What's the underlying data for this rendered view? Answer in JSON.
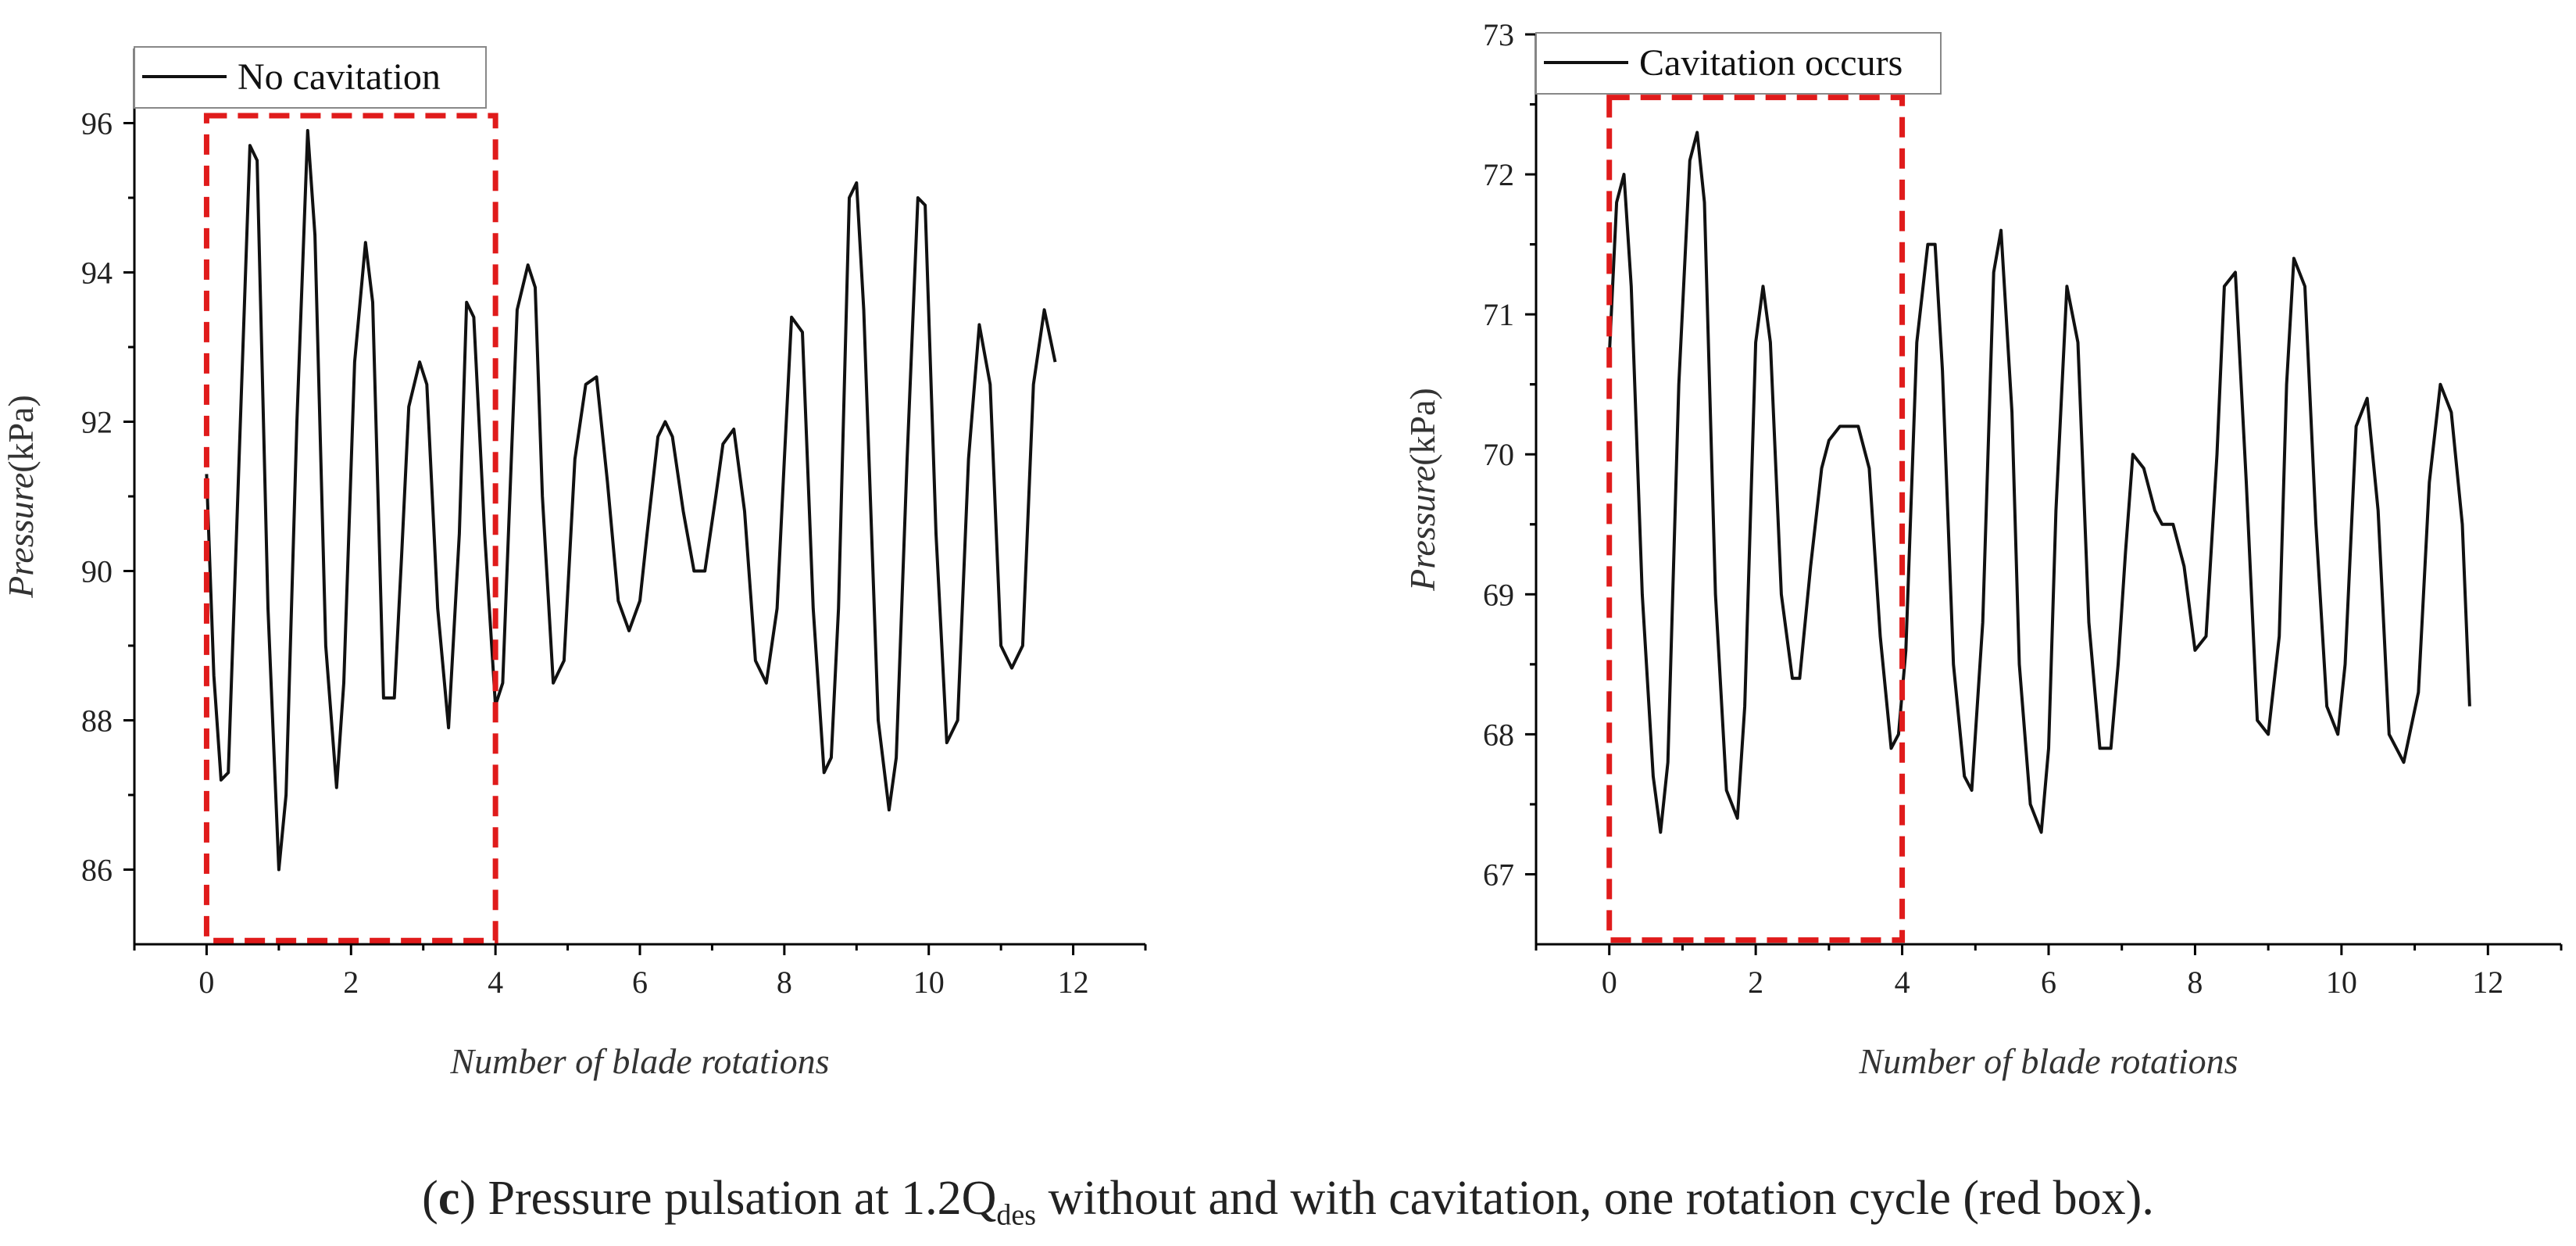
{
  "chart_data": [
    {
      "type": "line",
      "title": "",
      "xlabel": "Number of blade rotations",
      "ylabel_italic": "Pressure",
      "ylabel_unit": "(kPa)",
      "xlim": [
        -1,
        13
      ],
      "ylim": [
        85,
        97
      ],
      "xticks": [
        0,
        2,
        4,
        6,
        8,
        10,
        12
      ],
      "yticks": [
        86,
        88,
        90,
        92,
        94,
        96
      ],
      "legend": "No cavitation",
      "highlight_box": {
        "x0": 0,
        "x1": 4,
        "y0": 85.05,
        "y1": 96.1
      },
      "series": [
        {
          "name": "No cavitation",
          "x": [
            0,
            0.1,
            0.2,
            0.3,
            0.45,
            0.6,
            0.7,
            0.85,
            1.0,
            1.1,
            1.25,
            1.4,
            1.5,
            1.65,
            1.8,
            1.9,
            2.05,
            2.2,
            2.3,
            2.45,
            2.6,
            2.7,
            2.8,
            2.95,
            3.05,
            3.2,
            3.35,
            3.5,
            3.6,
            3.7,
            3.85,
            4.0,
            4.1,
            4.2,
            4.3,
            4.45,
            4.55,
            4.65,
            4.8,
            4.95,
            5.1,
            5.25,
            5.4,
            5.55,
            5.7,
            5.85,
            6.0,
            6.1,
            6.25,
            6.35,
            6.45,
            6.6,
            6.75,
            6.9,
            7.05,
            7.15,
            7.3,
            7.45,
            7.6,
            7.75,
            7.9,
            8.0,
            8.1,
            8.25,
            8.4,
            8.55,
            8.65,
            8.75,
            8.9,
            9.0,
            9.1,
            9.3,
            9.45,
            9.55,
            9.7,
            9.85,
            9.95,
            10.1,
            10.25,
            10.4,
            10.55,
            10.7,
            10.85,
            11.0,
            11.15,
            11.3,
            11.45,
            11.6,
            11.75
          ],
          "y": [
            91.3,
            88.6,
            87.2,
            87.3,
            91.5,
            95.7,
            95.5,
            89.5,
            86.0,
            87.0,
            92.0,
            95.9,
            94.5,
            89.0,
            87.1,
            88.5,
            92.8,
            94.4,
            93.6,
            88.3,
            88.3,
            90.2,
            92.2,
            92.8,
            92.5,
            89.5,
            87.9,
            90.5,
            93.6,
            93.4,
            90.5,
            88.2,
            88.5,
            91.0,
            93.5,
            94.1,
            93.8,
            91.0,
            88.5,
            88.8,
            91.5,
            92.5,
            92.6,
            91.2,
            89.6,
            89.2,
            89.6,
            90.5,
            91.8,
            92.0,
            91.8,
            90.8,
            90.0,
            90.0,
            91.0,
            91.7,
            91.9,
            90.8,
            88.8,
            88.5,
            89.5,
            91.5,
            93.4,
            93.2,
            89.5,
            87.3,
            87.5,
            89.5,
            95.0,
            95.2,
            93.5,
            88.0,
            86.8,
            87.5,
            91.5,
            95.0,
            94.9,
            90.5,
            87.7,
            88.0,
            91.5,
            93.3,
            92.5,
            89.0,
            88.7,
            89.0,
            92.5,
            93.5,
            92.8
          ]
        }
      ]
    },
    {
      "type": "line",
      "title": "",
      "xlabel": "Number of blade rotations",
      "ylabel_italic": "Pressure",
      "ylabel_unit": "(kPa)",
      "xlim": [
        -1,
        13
      ],
      "ylim": [
        66.5,
        73
      ],
      "xticks": [
        0,
        2,
        4,
        6,
        8,
        10,
        12
      ],
      "yticks": [
        67,
        68,
        69,
        70,
        71,
        72,
        73
      ],
      "legend": "Cavitation occurs",
      "highlight_box": {
        "x0": 0,
        "x1": 4,
        "y0": 66.53,
        "y1": 72.55
      },
      "series": [
        {
          "name": "Cavitation occurs",
          "x": [
            0,
            0.1,
            0.2,
            0.3,
            0.45,
            0.6,
            0.7,
            0.8,
            0.95,
            1.1,
            1.2,
            1.3,
            1.45,
            1.6,
            1.75,
            1.85,
            2.0,
            2.1,
            2.2,
            2.35,
            2.5,
            2.6,
            2.75,
            2.9,
            3.0,
            3.15,
            3.3,
            3.4,
            3.55,
            3.7,
            3.85,
            3.95,
            4.05,
            4.2,
            4.35,
            4.45,
            4.55,
            4.7,
            4.85,
            4.95,
            5.1,
            5.25,
            5.35,
            5.5,
            5.6,
            5.75,
            5.9,
            6.0,
            6.1,
            6.25,
            6.4,
            6.55,
            6.7,
            6.85,
            6.95,
            7.05,
            7.15,
            7.3,
            7.45,
            7.55,
            7.7,
            7.85,
            8.0,
            8.15,
            8.3,
            8.4,
            8.55,
            8.7,
            8.85,
            9.0,
            9.15,
            9.25,
            9.35,
            9.5,
            9.65,
            9.8,
            9.95,
            10.05,
            10.2,
            10.35,
            10.5,
            10.65,
            10.85,
            11.05,
            11.2,
            11.35,
            11.5,
            11.65,
            11.75
          ],
          "y": [
            70.7,
            71.8,
            72.0,
            71.2,
            69.0,
            67.7,
            67.3,
            67.8,
            70.5,
            72.1,
            72.3,
            71.8,
            69.0,
            67.6,
            67.4,
            68.2,
            70.8,
            71.2,
            70.8,
            69.0,
            68.4,
            68.4,
            69.2,
            69.9,
            70.1,
            70.2,
            70.2,
            70.2,
            69.9,
            68.7,
            67.9,
            68.0,
            68.6,
            70.8,
            71.5,
            71.5,
            70.6,
            68.5,
            67.7,
            67.6,
            68.8,
            71.3,
            71.6,
            70.3,
            68.5,
            67.5,
            67.3,
            67.9,
            69.6,
            71.2,
            70.8,
            68.8,
            67.9,
            67.9,
            68.5,
            69.3,
            70.0,
            69.9,
            69.6,
            69.5,
            69.5,
            69.2,
            68.6,
            68.7,
            70.0,
            71.2,
            71.3,
            69.8,
            68.1,
            68.0,
            68.7,
            70.5,
            71.4,
            71.2,
            69.5,
            68.2,
            68.0,
            68.5,
            70.2,
            70.4,
            69.6,
            68.0,
            67.8,
            68.3,
            69.8,
            70.5,
            70.3,
            69.5,
            68.2
          ]
        }
      ]
    }
  ],
  "caption": {
    "open": "(",
    "label": "c",
    "close": ")",
    "text_a": " Pressure pulsation at 1.2Q",
    "subscript": "des",
    "text_b": " without and with cavitation, one rotation cycle (red box)."
  }
}
